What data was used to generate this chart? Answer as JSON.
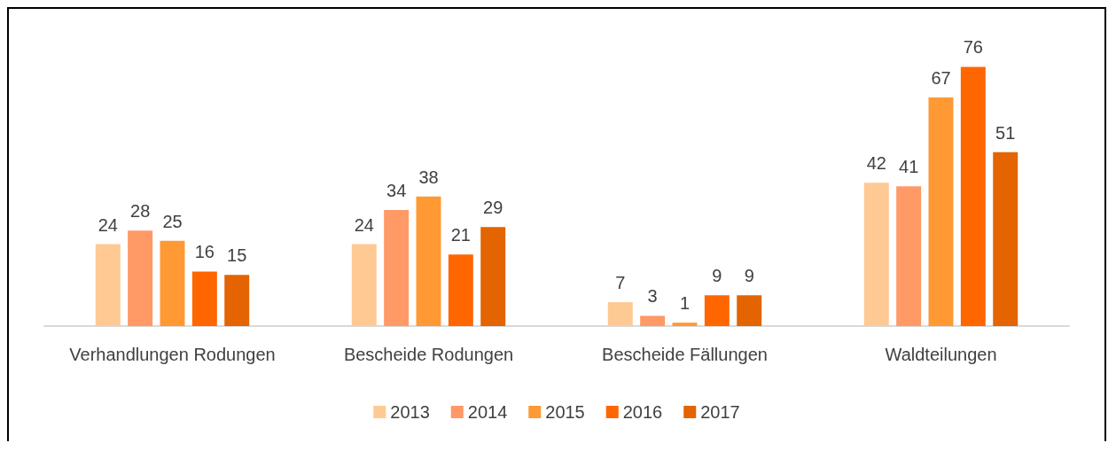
{
  "chart_data": {
    "type": "bar",
    "categories": [
      "Verhandlungen Rodungen",
      "Bescheide Rodungen",
      "Bescheide Fällungen",
      "Waldteilungen"
    ],
    "series": [
      {
        "name": "2013",
        "color": "#ffc993",
        "values": [
          24,
          24,
          7,
          42
        ]
      },
      {
        "name": "2014",
        "color": "#ff9966",
        "values": [
          28,
          34,
          3,
          41
        ]
      },
      {
        "name": "2015",
        "color": "#ff9933",
        "values": [
          25,
          38,
          1,
          67
        ]
      },
      {
        "name": "2016",
        "color": "#ff6600",
        "values": [
          16,
          21,
          9,
          76
        ]
      },
      {
        "name": "2017",
        "color": "#e36400",
        "values": [
          15,
          29,
          9,
          51
        ]
      }
    ],
    "data_labels": true,
    "legend": "bottom",
    "grid": false
  }
}
